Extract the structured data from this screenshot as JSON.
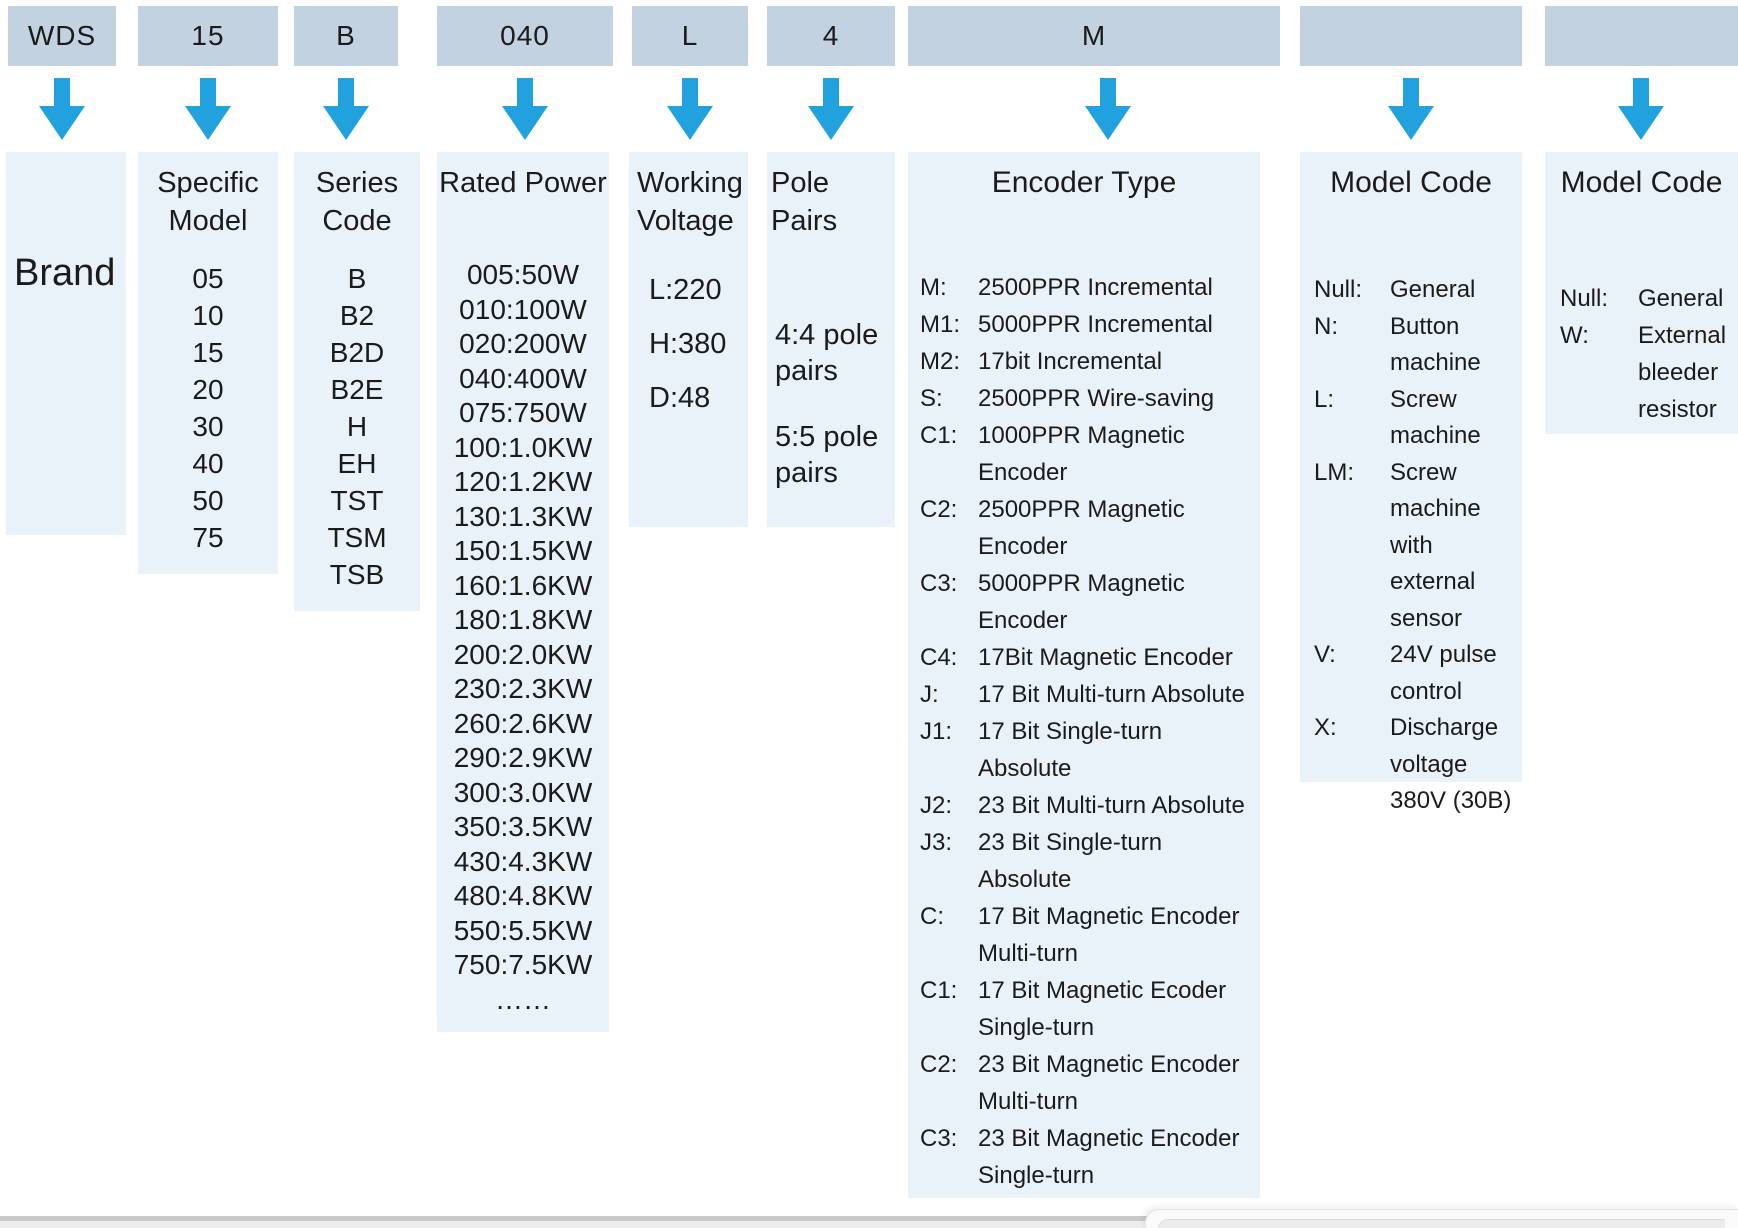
{
  "colors": {
    "header_box_bg": "#c3d2e0",
    "detail_box_bg": "#e9f1f9",
    "arrow_blue": "#21a2de",
    "text": "#1b1b1b",
    "bottom_bar_line": "#c9c9c9",
    "bottom_bar_track": "#ededed"
  },
  "columns": [
    {
      "code": "WDS",
      "brand_label": "Brand"
    },
    {
      "code": "15",
      "title": "Specific\nModel",
      "items": [
        "05",
        "10",
        "15",
        "20",
        "30",
        "40",
        "50",
        "75"
      ]
    },
    {
      "code": "B",
      "title": "Series\nCode",
      "items": [
        "B",
        "B2",
        "B2D",
        "B2E",
        "H",
        "EH",
        "TST",
        "TSM",
        "TSB"
      ]
    },
    {
      "code": "040",
      "title": "Rated Power",
      "items": [
        "005:50W",
        "010:100W",
        "020:200W",
        "040:400W",
        "075:750W",
        "100:1.0KW",
        "120:1.2KW",
        "130:1.3KW",
        "150:1.5KW",
        "160:1.6KW",
        "180:1.8KW",
        "200:2.0KW",
        "230:2.3KW",
        "260:2.6KW",
        "290:2.9KW",
        "300:3.0KW",
        "350:3.5KW",
        "430:4.3KW",
        "480:4.8KW",
        "550:5.5KW",
        "750:7.5KW",
        "……"
      ]
    },
    {
      "code": "L",
      "title": "Working\nVoltage",
      "items": [
        "L:220",
        "H:380",
        "D:48"
      ]
    },
    {
      "code": "4",
      "title": "Pole Pairs",
      "items": [
        "4:4 pole\npairs",
        "5:5 pole\npairs"
      ]
    },
    {
      "code": "M",
      "title": "Encoder Type",
      "entries": [
        {
          "k": "M:",
          "v": "2500PPR Incremental"
        },
        {
          "k": "M1:",
          "v": "5000PPR Incremental"
        },
        {
          "k": "M2:",
          "v": "17bit Incremental"
        },
        {
          "k": "S:",
          "v": "2500PPR Wire-saving"
        },
        {
          "k": "C1:",
          "v": "1000PPR Magnetic\nEncoder"
        },
        {
          "k": "C2:",
          "v": "2500PPR Magnetic\nEncoder"
        },
        {
          "k": "C3:",
          "v": "5000PPR Magnetic\nEncoder"
        },
        {
          "k": "C4:",
          "v": "17Bit Magnetic Encoder"
        },
        {
          "k": "J:",
          "v": "17 Bit Multi-turn Absolute"
        },
        {
          "k": "J1:",
          "v": "17 Bit Single-turn\nAbsolute"
        },
        {
          "k": "J2:",
          "v": "23 Bit Multi-turn Absolute"
        },
        {
          "k": "J3:",
          "v": "23 Bit Single-turn\nAbsolute"
        },
        {
          "k": "C:",
          "v": "17 Bit Magnetic Encoder\nMulti-turn"
        },
        {
          "k": "C1:",
          "v": "17 Bit Magnetic Ecoder\nSingle-turn"
        },
        {
          "k": "C2:",
          "v": "23 Bit Magnetic Encoder\nMulti-turn"
        },
        {
          "k": "C3:",
          "v": "23 Bit Magnetic Encoder\nSingle-turn"
        }
      ]
    },
    {
      "code": "",
      "title": "Model Code",
      "entries": [
        {
          "k": "Null:",
          "v": "General"
        },
        {
          "k": "N:",
          "v": "Button\nmachine"
        },
        {
          "k": "L:",
          "v": "Screw\nmachine"
        },
        {
          "k": "LM:",
          "v": "Screw\nmachine\nwith external\nsensor"
        },
        {
          "k": "V:",
          "v": "24V pulse\ncontrol"
        },
        {
          "k": "X:",
          "v": "Discharge\nvoltage\n380V (30B)"
        }
      ]
    },
    {
      "code": "",
      "title": "Model Code",
      "entries": [
        {
          "k": "Null:",
          "v": "General"
        },
        {
          "k": "W:",
          "v": "External\nbleeder\nresistor"
        }
      ]
    }
  ]
}
